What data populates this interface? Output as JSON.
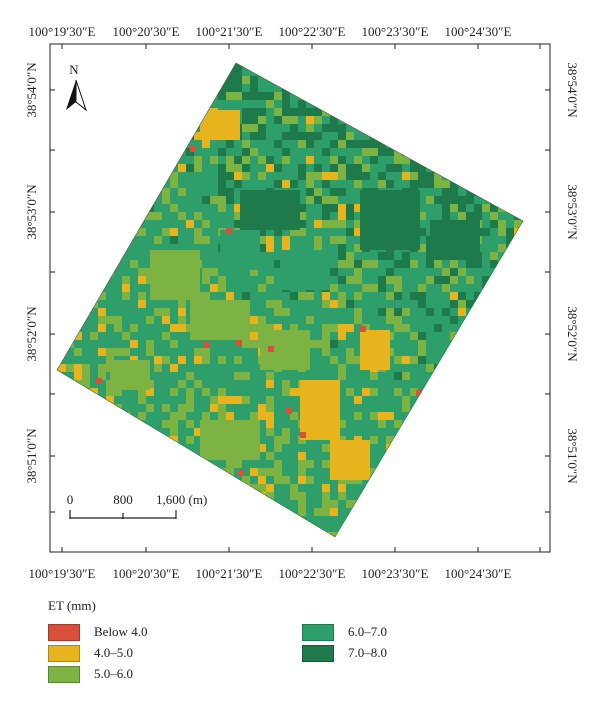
{
  "map": {
    "top_ticks": [
      "100°19′30″E",
      "100°20′30″E",
      "100°21′30″E",
      "100°22′30″E",
      "100°23′30″E",
      "100°24′30″E"
    ],
    "bottom_ticks": [
      "100°19′30″E",
      "100°20′30″E",
      "100°21′30″E",
      "100°22′30″E",
      "100°23′30″E",
      "100°24′30″E"
    ],
    "left_ticks": [
      "38°54′0″N",
      "38°53′0″N",
      "38°52′0″N",
      "38°51′0″N"
    ],
    "right_ticks": [
      "38°54′0″N",
      "38°53′0″N",
      "38°52′0″N",
      "38°51′0″N"
    ],
    "north_label": "N",
    "scale_bar": {
      "labels": [
        "0",
        "800",
        "1,600 (m)"
      ]
    }
  },
  "legend": {
    "title": "ET (mm)",
    "items": [
      {
        "label": "Below 4.0",
        "color": "#d94f3a"
      },
      {
        "label": "4.0–5.0",
        "color": "#e8b41d"
      },
      {
        "label": "5.0–6.0",
        "color": "#7cb342"
      },
      {
        "label": "6.0–7.0",
        "color": "#2e9e6b"
      },
      {
        "label": "7.0–8.0",
        "color": "#1e7a4a"
      }
    ]
  },
  "colors": {
    "below4": "#d94f3a",
    "c4_5": "#e8b41d",
    "c5_6": "#7cb342",
    "c6_7": "#2e9e6b",
    "c7_8": "#1e7a4a"
  }
}
